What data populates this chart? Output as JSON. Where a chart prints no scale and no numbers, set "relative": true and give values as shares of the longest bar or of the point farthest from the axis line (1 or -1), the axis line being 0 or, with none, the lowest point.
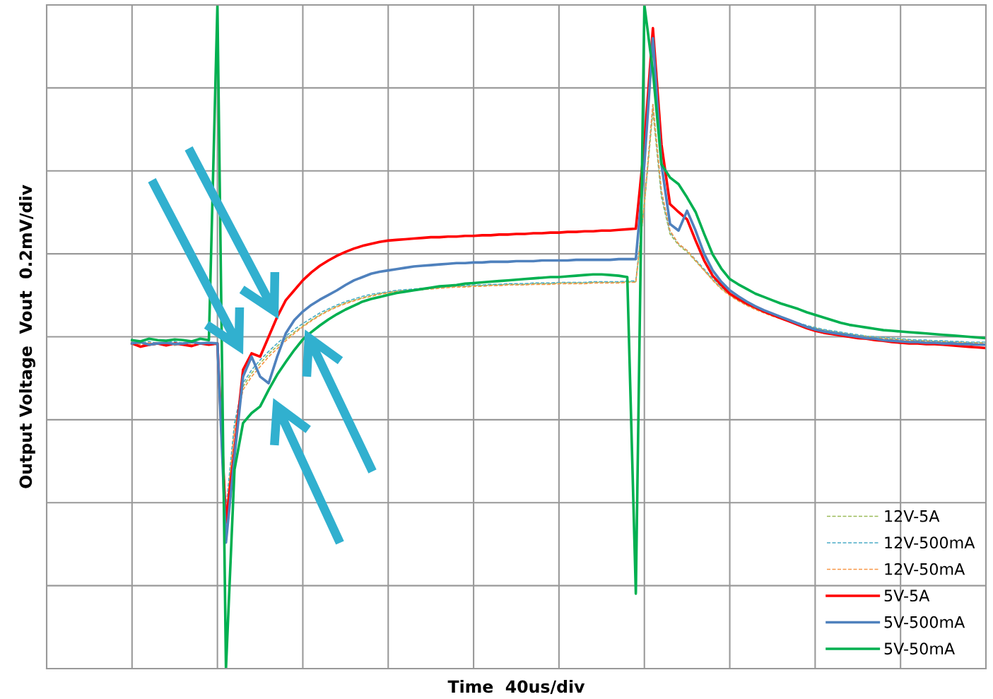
{
  "chart_data": {
    "type": "line",
    "relative": true,
    "xlabel": "Time  40us/div",
    "ylabel": "Output Voltage  Vout  0.2mV/div",
    "grid": true,
    "legend": "bottom right",
    "categories": [
      null,
      null,
      null,
      null,
      null,
      null,
      null,
      null,
      null,
      null,
      null,
      null,
      null,
      null,
      null,
      null,
      null,
      null,
      null,
      null,
      null,
      null,
      null,
      null,
      null,
      null,
      null,
      null,
      null,
      null,
      null,
      null,
      null,
      null,
      null,
      null,
      null,
      null,
      null,
      null,
      null,
      null,
      null,
      null,
      null,
      null,
      null,
      null,
      null,
      null,
      null,
      null,
      null,
      null,
      null,
      null,
      null,
      null,
      null,
      null,
      null,
      null,
      null,
      null,
      null,
      null,
      null,
      null,
      null,
      null,
      null,
      null,
      null,
      null,
      null,
      null,
      null,
      null,
      null,
      null,
      null,
      null,
      null,
      null,
      null,
      null,
      null,
      null,
      null,
      null,
      null,
      null,
      null,
      null,
      null,
      null,
      null,
      null,
      null,
      null,
      null,
      null,
      null,
      null,
      null,
      null,
      null,
      null,
      null,
      null,
      null
    ],
    "series": [
      {
        "name": "12V-5A",
        "color": "#9bbb59",
        "line_style": "dashed",
        "values": [
          null,
          null,
          null,
          null,
          null,
          null,
          null,
          null,
          null,
          null,
          0.488,
          0.49,
          0.487,
          0.489,
          0.491,
          0.488,
          0.49,
          0.487,
          0.489,
          0.488,
          0.488,
          0.235,
          0.365,
          0.425,
          0.445,
          0.46,
          0.474,
          0.486,
          0.497,
          0.507,
          0.516,
          0.525,
          0.533,
          0.54,
          0.546,
          0.551,
          0.555,
          0.559,
          0.562,
          0.565,
          0.567,
          0.569,
          0.57,
          0.571,
          0.572,
          0.573,
          0.574,
          0.575,
          0.576,
          0.576,
          0.577,
          0.577,
          0.578,
          0.578,
          0.579,
          0.579,
          0.579,
          0.58,
          0.58,
          0.58,
          0.581,
          0.581,
          0.581,
          0.581,
          0.582,
          0.582,
          0.582,
          0.582,
          0.583,
          0.583,
          0.7,
          0.84,
          0.71,
          0.655,
          0.638,
          0.628,
          0.614,
          0.6,
          0.586,
          0.573,
          0.563,
          0.555,
          0.548,
          0.542,
          0.537,
          0.532,
          0.528,
          0.524,
          0.52,
          0.516,
          0.513,
          0.51,
          0.508,
          0.506,
          0.504,
          0.502,
          0.501,
          0.499,
          0.498,
          0.497,
          0.496,
          0.495,
          0.494,
          0.494,
          0.493,
          0.493,
          0.492,
          0.492,
          0.491,
          0.491,
          0.491
        ]
      },
      {
        "name": "12V-500mA",
        "color": "#4bacc6",
        "line_style": "dashed",
        "values": [
          null,
          null,
          null,
          null,
          null,
          null,
          null,
          null,
          null,
          null,
          0.492,
          0.49,
          0.493,
          0.49,
          0.491,
          0.493,
          0.49,
          0.492,
          0.49,
          0.491,
          0.49,
          0.24,
          0.37,
          0.43,
          0.45,
          0.465,
          0.478,
          0.49,
          0.501,
          0.511,
          0.52,
          0.528,
          0.536,
          0.542,
          0.548,
          0.553,
          0.557,
          0.561,
          0.564,
          0.566,
          0.568,
          0.57,
          0.571,
          0.572,
          0.573,
          0.574,
          0.575,
          0.576,
          0.577,
          0.577,
          0.578,
          0.578,
          0.579,
          0.579,
          0.58,
          0.58,
          0.58,
          0.581,
          0.581,
          0.581,
          0.582,
          0.582,
          0.582,
          0.582,
          0.583,
          0.583,
          0.583,
          0.583,
          0.584,
          0.584,
          0.7,
          0.85,
          0.715,
          0.658,
          0.64,
          0.63,
          0.616,
          0.602,
          0.588,
          0.575,
          0.565,
          0.557,
          0.55,
          0.544,
          0.539,
          0.534,
          0.529,
          0.525,
          0.521,
          0.517,
          0.514,
          0.511,
          0.509,
          0.507,
          0.505,
          0.503,
          0.501,
          0.5,
          0.499,
          0.498,
          0.497,
          0.496,
          0.495,
          0.495,
          0.494,
          0.494,
          0.493,
          0.493,
          0.492,
          0.492,
          0.492
        ]
      },
      {
        "name": "12V-50mA",
        "color": "#f79646",
        "line_style": "dashed",
        "values": [
          null,
          null,
          null,
          null,
          null,
          null,
          null,
          null,
          null,
          null,
          0.49,
          0.488,
          0.491,
          0.489,
          0.49,
          0.487,
          0.49,
          0.488,
          0.491,
          0.489,
          0.49,
          0.23,
          0.36,
          0.42,
          0.44,
          0.455,
          0.47,
          0.482,
          0.494,
          0.505,
          0.515,
          0.524,
          0.532,
          0.539,
          0.545,
          0.55,
          0.554,
          0.558,
          0.561,
          0.564,
          0.566,
          0.568,
          0.569,
          0.57,
          0.571,
          0.572,
          0.573,
          0.574,
          0.575,
          0.575,
          0.576,
          0.576,
          0.577,
          0.577,
          0.578,
          0.578,
          0.578,
          0.579,
          0.579,
          0.579,
          0.58,
          0.58,
          0.58,
          0.58,
          0.581,
          0.581,
          0.581,
          0.581,
          0.582,
          0.582,
          0.7,
          0.85,
          0.72,
          0.66,
          0.64,
          0.63,
          0.615,
          0.6,
          0.585,
          0.572,
          0.562,
          0.554,
          0.547,
          0.541,
          0.536,
          0.531,
          0.527,
          0.523,
          0.519,
          0.515,
          0.512,
          0.509,
          0.507,
          0.505,
          0.503,
          0.501,
          0.5,
          0.498,
          0.497,
          0.496,
          0.495,
          0.494,
          0.493,
          0.493,
          0.492,
          0.492,
          0.491,
          0.491,
          0.49,
          0.49,
          0.49
        ]
      },
      {
        "name": "5V-5A",
        "color": "#ff0000",
        "line_style": "solid",
        "values": [
          null,
          null,
          null,
          null,
          null,
          null,
          null,
          null,
          null,
          null,
          0.49,
          0.485,
          0.488,
          0.49,
          0.487,
          0.49,
          0.488,
          0.486,
          0.49,
          0.488,
          0.49,
          0.22,
          0.33,
          0.45,
          0.475,
          0.47,
          0.5,
          0.53,
          0.555,
          0.57,
          0.585,
          0.597,
          0.607,
          0.615,
          0.622,
          0.628,
          0.633,
          0.637,
          0.64,
          0.643,
          0.645,
          0.646,
          0.647,
          0.648,
          0.649,
          0.65,
          0.65,
          0.651,
          0.651,
          0.652,
          0.652,
          0.653,
          0.653,
          0.654,
          0.654,
          0.655,
          0.655,
          0.656,
          0.656,
          0.657,
          0.657,
          0.658,
          0.658,
          0.659,
          0.659,
          0.66,
          0.66,
          0.661,
          0.662,
          0.663,
          0.79,
          0.965,
          0.79,
          0.7,
          0.688,
          0.677,
          0.645,
          0.615,
          0.592,
          0.578,
          0.565,
          0.557,
          0.55,
          0.544,
          0.538,
          0.533,
          0.528,
          0.523,
          0.518,
          0.513,
          0.509,
          0.506,
          0.504,
          0.502,
          0.5,
          0.498,
          0.497,
          0.495,
          0.494,
          0.492,
          0.491,
          0.49,
          0.49,
          0.489,
          0.489,
          0.488,
          0.487,
          0.486,
          0.485,
          0.484,
          0.483
        ]
      },
      {
        "name": "5V-500mA",
        "color": "#4f81bd",
        "line_style": "solid",
        "values": [
          null,
          null,
          null,
          null,
          null,
          null,
          null,
          null,
          null,
          null,
          0.49,
          0.492,
          0.488,
          0.49,
          0.491,
          0.489,
          0.49,
          0.492,
          0.49,
          0.491,
          0.49,
          0.19,
          0.32,
          0.44,
          0.47,
          0.44,
          0.43,
          0.47,
          0.505,
          0.525,
          0.538,
          0.548,
          0.556,
          0.563,
          0.57,
          0.578,
          0.585,
          0.59,
          0.595,
          0.598,
          0.6,
          0.602,
          0.604,
          0.606,
          0.607,
          0.608,
          0.609,
          0.61,
          0.611,
          0.611,
          0.612,
          0.612,
          0.613,
          0.613,
          0.613,
          0.614,
          0.614,
          0.614,
          0.615,
          0.615,
          0.615,
          0.615,
          0.616,
          0.616,
          0.616,
          0.616,
          0.616,
          0.617,
          0.617,
          0.617,
          0.76,
          0.95,
          0.76,
          0.67,
          0.66,
          0.69,
          0.66,
          0.625,
          0.6,
          0.583,
          0.57,
          0.561,
          0.553,
          0.546,
          0.54,
          0.535,
          0.53,
          0.525,
          0.52,
          0.515,
          0.511,
          0.508,
          0.506,
          0.504,
          0.502,
          0.5,
          0.498,
          0.497,
          0.495,
          0.494,
          0.493,
          0.492,
          0.492,
          0.491,
          0.491,
          0.49,
          0.49,
          0.489,
          0.489,
          0.488,
          0.488
        ]
      },
      {
        "name": "5V-50mA",
        "color": "#00b050",
        "line_style": "solid",
        "values": [
          null,
          null,
          null,
          null,
          null,
          null,
          null,
          null,
          null,
          null,
          0.495,
          0.493,
          0.497,
          0.495,
          0.494,
          0.496,
          0.495,
          0.493,
          0.497,
          0.495,
          1.0,
          0.0,
          0.3,
          0.37,
          0.385,
          0.395,
          0.42,
          0.443,
          0.462,
          0.48,
          0.496,
          0.507,
          0.517,
          0.526,
          0.534,
          0.541,
          0.547,
          0.553,
          0.557,
          0.56,
          0.563,
          0.566,
          0.568,
          0.57,
          0.572,
          0.574,
          0.576,
          0.577,
          0.578,
          0.58,
          0.581,
          0.582,
          0.583,
          0.584,
          0.585,
          0.586,
          0.587,
          0.588,
          0.589,
          0.59,
          0.59,
          0.591,
          0.592,
          0.593,
          0.594,
          0.594,
          0.593,
          0.592,
          0.59,
          0.113,
          1.0,
          0.9,
          0.76,
          0.74,
          0.73,
          0.71,
          0.688,
          0.655,
          0.624,
          0.603,
          0.587,
          0.579,
          0.572,
          0.565,
          0.56,
          0.555,
          0.55,
          0.546,
          0.542,
          0.537,
          0.533,
          0.529,
          0.525,
          0.521,
          0.518,
          0.516,
          0.514,
          0.512,
          0.51,
          0.509,
          0.508,
          0.507,
          0.506,
          0.505,
          0.504,
          0.503,
          0.502,
          0.501,
          0.5,
          0.499,
          0.498
        ]
      }
    ]
  }
}
